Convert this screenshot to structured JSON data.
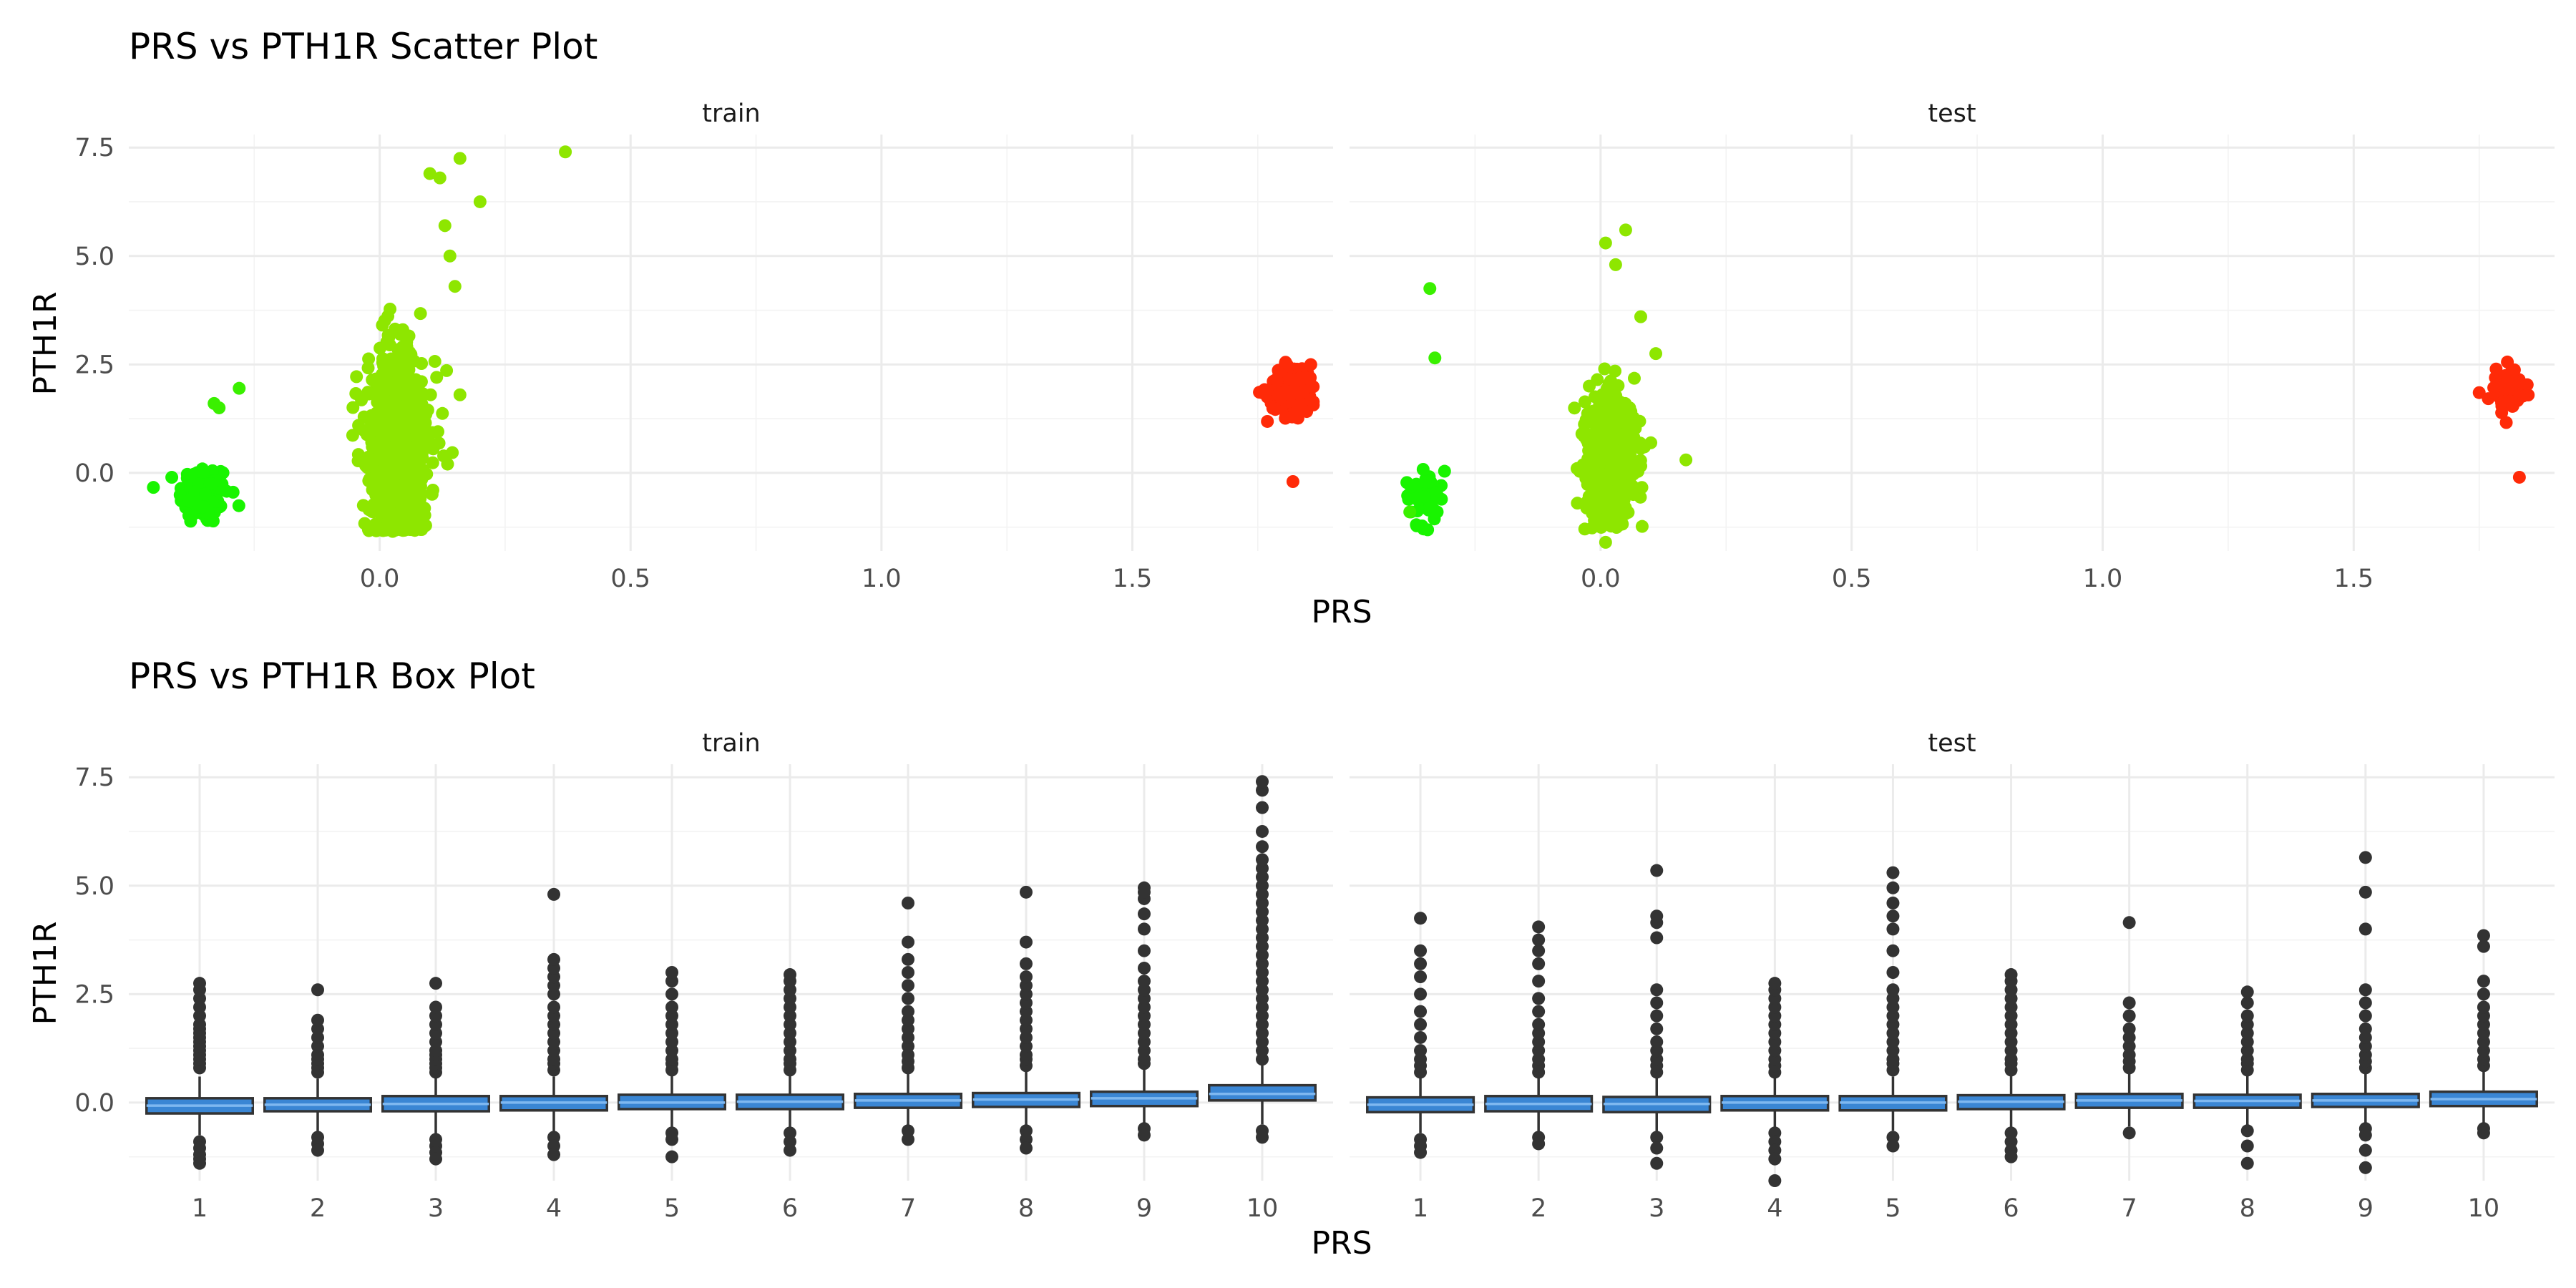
{
  "chart_data": [
    {
      "type": "scatter",
      "title": "PRS vs PTH1R Scatter Plot",
      "xlabel": "PRS",
      "ylabel": "PTH1R",
      "xlim": [
        -0.5,
        1.9
      ],
      "ylim": [
        -1.8,
        7.8
      ],
      "xticks": [
        "0.0",
        "0.5",
        "1.0",
        "1.5"
      ],
      "xtick_values": [
        0,
        0.5,
        1.0,
        1.5
      ],
      "yticks": [
        "0.0",
        "2.5",
        "5.0",
        "7.5"
      ],
      "ytick_values": [
        0,
        2.5,
        5.0,
        7.5
      ],
      "grid": true,
      "color_scale": {
        "low": "#00ff00",
        "mid": "#80e000",
        "high": "#ff2000"
      },
      "panels": [
        {
          "name": "train",
          "clusters": [
            {
              "x_center": -0.35,
              "x_spread": 0.025,
              "y_center": -0.5,
              "y_spread": 0.35,
              "n": 120,
              "color": "#19f400"
            },
            {
              "x_center": 0.04,
              "x_spread": 0.03,
              "y_center": 0.6,
              "y_spread": 1.1,
              "n": 900,
              "color": "#8ee600"
            },
            {
              "x_center": 1.82,
              "x_spread": 0.025,
              "y_center": 1.9,
              "y_spread": 0.3,
              "n": 160,
              "color": "#ff2a08"
            }
          ],
          "points": [
            {
              "x": -0.28,
              "y": 1.95
            },
            {
              "x": -0.33,
              "y": 1.6
            },
            {
              "x": -0.32,
              "y": 1.5
            },
            {
              "x": 0.37,
              "y": 7.4
            },
            {
              "x": 0.16,
              "y": 7.25
            },
            {
              "x": 0.1,
              "y": 6.9
            },
            {
              "x": 0.2,
              "y": 6.25
            },
            {
              "x": 0.12,
              "y": 6.8
            },
            {
              "x": 0.13,
              "y": 5.7
            },
            {
              "x": 0.14,
              "y": 5.0
            },
            {
              "x": 0.16,
              "y": 1.8
            },
            {
              "x": 0.15,
              "y": 4.3
            },
            {
              "x": 1.82,
              "y": -0.2
            }
          ]
        },
        {
          "name": "test",
          "clusters": [
            {
              "x_center": -0.35,
              "x_spread": 0.02,
              "y_center": -0.5,
              "y_spread": 0.35,
              "n": 45,
              "color": "#19f400"
            },
            {
              "x_center": 0.02,
              "x_spread": 0.025,
              "y_center": 0.35,
              "y_spread": 0.8,
              "n": 500,
              "color": "#8ee600"
            },
            {
              "x_center": 1.81,
              "x_spread": 0.015,
              "y_center": 1.9,
              "y_spread": 0.25,
              "n": 70,
              "color": "#ff2a08"
            }
          ],
          "points": [
            {
              "x": -0.34,
              "y": 4.25
            },
            {
              "x": -0.33,
              "y": 2.65
            },
            {
              "x": -0.38,
              "y": -0.9
            },
            {
              "x": 0.05,
              "y": 5.6
            },
            {
              "x": 0.01,
              "y": 5.3
            },
            {
              "x": 0.03,
              "y": 4.8
            },
            {
              "x": 0.08,
              "y": 3.6
            },
            {
              "x": 0.11,
              "y": 2.75
            },
            {
              "x": 0.17,
              "y": 0.3
            },
            {
              "x": 0.01,
              "y": -1.6
            },
            {
              "x": 1.75,
              "y": 1.85
            },
            {
              "x": 1.83,
              "y": -0.1
            }
          ]
        }
      ]
    },
    {
      "type": "box",
      "title": "PRS vs PTH1R Box Plot",
      "xlabel": "PRS",
      "ylabel": "PTH1R",
      "categories": [
        "1",
        "2",
        "3",
        "4",
        "5",
        "6",
        "7",
        "8",
        "9",
        "10"
      ],
      "ylim": [
        -1.8,
        7.8
      ],
      "yticks": [
        "0.0",
        "2.5",
        "5.0",
        "7.5"
      ],
      "ytick_values": [
        0,
        2.5,
        5.0,
        7.5
      ],
      "grid": true,
      "box_fill": "#3a86d4",
      "median_color": "#7fb8f0",
      "panels": [
        {
          "name": "train",
          "boxes": [
            {
              "q1": -0.25,
              "median": -0.07,
              "q3": 0.1,
              "wmin": -0.75,
              "wmax": 0.6,
              "outliers": [
                0.8,
                0.9,
                1.0,
                1.1,
                1.2,
                1.3,
                1.4,
                1.5,
                1.6,
                1.7,
                1.8,
                2.0,
                2.2,
                2.4,
                2.6,
                2.75,
                -0.9,
                -1.05,
                -1.2,
                -1.3,
                -1.4
              ]
            },
            {
              "q1": -0.2,
              "median": -0.05,
              "q3": 0.1,
              "wmin": -0.7,
              "wmax": 0.55,
              "outliers": [
                0.7,
                0.8,
                0.9,
                1.0,
                1.1,
                1.3,
                1.5,
                1.7,
                1.9,
                2.6,
                -0.8,
                -0.95,
                -1.1
              ]
            },
            {
              "q1": -0.2,
              "median": -0.03,
              "q3": 0.15,
              "wmin": -0.75,
              "wmax": 0.6,
              "outliers": [
                0.7,
                0.8,
                0.9,
                1.0,
                1.1,
                1.2,
                1.4,
                1.6,
                1.8,
                2.0,
                2.2,
                2.75,
                -0.85,
                -1.0,
                -1.15,
                -1.3
              ]
            },
            {
              "q1": -0.18,
              "median": 0.0,
              "q3": 0.15,
              "wmin": -0.7,
              "wmax": 0.6,
              "outliers": [
                0.75,
                0.9,
                1.0,
                1.2,
                1.4,
                1.6,
                1.8,
                2.0,
                2.2,
                2.5,
                2.7,
                2.9,
                3.1,
                3.3,
                4.8,
                -0.8,
                -1.0,
                -1.2
              ]
            },
            {
              "q1": -0.15,
              "median": 0.0,
              "q3": 0.18,
              "wmin": -0.6,
              "wmax": 0.65,
              "outliers": [
                0.75,
                0.9,
                1.0,
                1.2,
                1.4,
                1.6,
                1.8,
                2.0,
                2.2,
                2.5,
                2.8,
                3.0,
                -0.7,
                -0.85,
                -1.25
              ]
            },
            {
              "q1": -0.15,
              "median": 0.02,
              "q3": 0.18,
              "wmin": -0.6,
              "wmax": 0.65,
              "outliers": [
                0.75,
                0.9,
                1.0,
                1.2,
                1.4,
                1.6,
                1.8,
                2.0,
                2.2,
                2.4,
                2.6,
                2.8,
                2.95,
                -0.7,
                -0.9,
                -1.1
              ]
            },
            {
              "q1": -0.12,
              "median": 0.05,
              "q3": 0.2,
              "wmin": -0.55,
              "wmax": 0.7,
              "outliers": [
                0.8,
                0.95,
                1.1,
                1.3,
                1.5,
                1.7,
                1.9,
                2.1,
                2.4,
                2.7,
                3.0,
                3.3,
                3.7,
                4.6,
                -0.65,
                -0.85
              ]
            },
            {
              "q1": -0.1,
              "median": 0.07,
              "q3": 0.22,
              "wmin": -0.55,
              "wmax": 0.75,
              "outliers": [
                0.85,
                1.0,
                1.1,
                1.3,
                1.5,
                1.7,
                1.9,
                2.1,
                2.3,
                2.5,
                2.7,
                2.9,
                3.2,
                3.7,
                4.85,
                -0.65,
                -0.85,
                -1.05
              ]
            },
            {
              "q1": -0.08,
              "median": 0.1,
              "q3": 0.25,
              "wmin": -0.5,
              "wmax": 0.8,
              "outliers": [
                0.9,
                1.0,
                1.2,
                1.4,
                1.6,
                1.8,
                2.0,
                2.2,
                2.4,
                2.6,
                2.8,
                3.1,
                3.5,
                4.0,
                4.35,
                4.7,
                4.85,
                4.95,
                -0.6,
                -0.75
              ]
            },
            {
              "q1": 0.05,
              "median": 0.2,
              "q3": 0.4,
              "wmin": -0.5,
              "wmax": 0.9,
              "outliers": [
                1.0,
                1.2,
                1.4,
                1.6,
                1.8,
                2.0,
                2.2,
                2.4,
                2.6,
                2.8,
                3.0,
                3.2,
                3.4,
                3.6,
                3.8,
                4.0,
                4.2,
                4.4,
                4.6,
                4.8,
                5.0,
                5.2,
                5.4,
                5.6,
                5.9,
                6.25,
                6.8,
                7.2,
                7.4,
                -0.65,
                -0.8
              ]
            }
          ]
        },
        {
          "name": "test",
          "boxes": [
            {
              "q1": -0.22,
              "median": -0.05,
              "q3": 0.12,
              "wmin": -0.7,
              "wmax": 0.6,
              "outliers": [
                0.7,
                0.85,
                1.0,
                1.2,
                1.5,
                1.8,
                2.1,
                2.5,
                2.9,
                3.2,
                3.5,
                4.25,
                -0.85,
                -1.0,
                -1.15
              ]
            },
            {
              "q1": -0.2,
              "median": -0.03,
              "q3": 0.15,
              "wmin": -0.7,
              "wmax": 0.6,
              "outliers": [
                0.7,
                0.85,
                1.0,
                1.2,
                1.4,
                1.6,
                1.8,
                2.1,
                2.4,
                2.8,
                3.2,
                3.5,
                3.75,
                4.05,
                -0.8,
                -0.95
              ]
            },
            {
              "q1": -0.22,
              "median": -0.03,
              "q3": 0.13,
              "wmin": -0.7,
              "wmax": 0.6,
              "outliers": [
                0.7,
                0.85,
                1.0,
                1.2,
                1.4,
                1.7,
                2.0,
                2.3,
                2.6,
                3.8,
                4.15,
                4.3,
                5.35,
                -0.8,
                -1.05,
                -1.4
              ]
            },
            {
              "q1": -0.18,
              "median": 0.0,
              "q3": 0.15,
              "wmin": -0.6,
              "wmax": 0.6,
              "outliers": [
                0.7,
                0.85,
                1.0,
                1.2,
                1.4,
                1.6,
                1.8,
                2.0,
                2.2,
                2.4,
                2.6,
                2.75,
                -0.7,
                -0.9,
                -1.1,
                -1.3,
                -1.8
              ]
            },
            {
              "q1": -0.18,
              "median": 0.0,
              "q3": 0.15,
              "wmin": -0.65,
              "wmax": 0.6,
              "outliers": [
                0.75,
                0.9,
                1.0,
                1.2,
                1.4,
                1.6,
                1.8,
                2.0,
                2.2,
                2.4,
                2.6,
                3.0,
                3.5,
                4.0,
                4.3,
                4.6,
                4.95,
                5.3,
                -0.8,
                -1.0
              ]
            },
            {
              "q1": -0.15,
              "median": 0.02,
              "q3": 0.17,
              "wmin": -0.6,
              "wmax": 0.65,
              "outliers": [
                0.75,
                0.9,
                1.0,
                1.2,
                1.4,
                1.6,
                1.8,
                2.0,
                2.2,
                2.4,
                2.6,
                2.8,
                2.95,
                -0.7,
                -0.9,
                -1.1,
                -1.25
              ]
            },
            {
              "q1": -0.12,
              "median": 0.05,
              "q3": 0.2,
              "wmin": -0.55,
              "wmax": 0.7,
              "outliers": [
                0.8,
                0.95,
                1.1,
                1.3,
                1.5,
                1.7,
                2.0,
                2.3,
                4.15,
                -0.7
              ]
            },
            {
              "q1": -0.12,
              "median": 0.04,
              "q3": 0.18,
              "wmin": -0.55,
              "wmax": 0.65,
              "outliers": [
                0.75,
                0.9,
                1.0,
                1.2,
                1.4,
                1.6,
                1.8,
                2.0,
                2.3,
                2.55,
                -0.65,
                -1.0,
                -1.4
              ]
            },
            {
              "q1": -0.1,
              "median": 0.05,
              "q3": 0.2,
              "wmin": -0.5,
              "wmax": 0.7,
              "outliers": [
                0.8,
                0.95,
                1.1,
                1.3,
                1.5,
                1.7,
                2.0,
                2.3,
                2.6,
                4.0,
                4.85,
                5.65,
                -0.6,
                -0.75,
                -1.1,
                -1.5
              ]
            },
            {
              "q1": -0.08,
              "median": 0.08,
              "q3": 0.25,
              "wmin": -0.5,
              "wmax": 0.75,
              "outliers": [
                0.85,
                1.0,
                1.2,
                1.4,
                1.6,
                1.8,
                2.0,
                2.2,
                2.5,
                2.8,
                3.6,
                3.85,
                -0.6,
                -0.7
              ]
            }
          ]
        }
      ]
    }
  ]
}
